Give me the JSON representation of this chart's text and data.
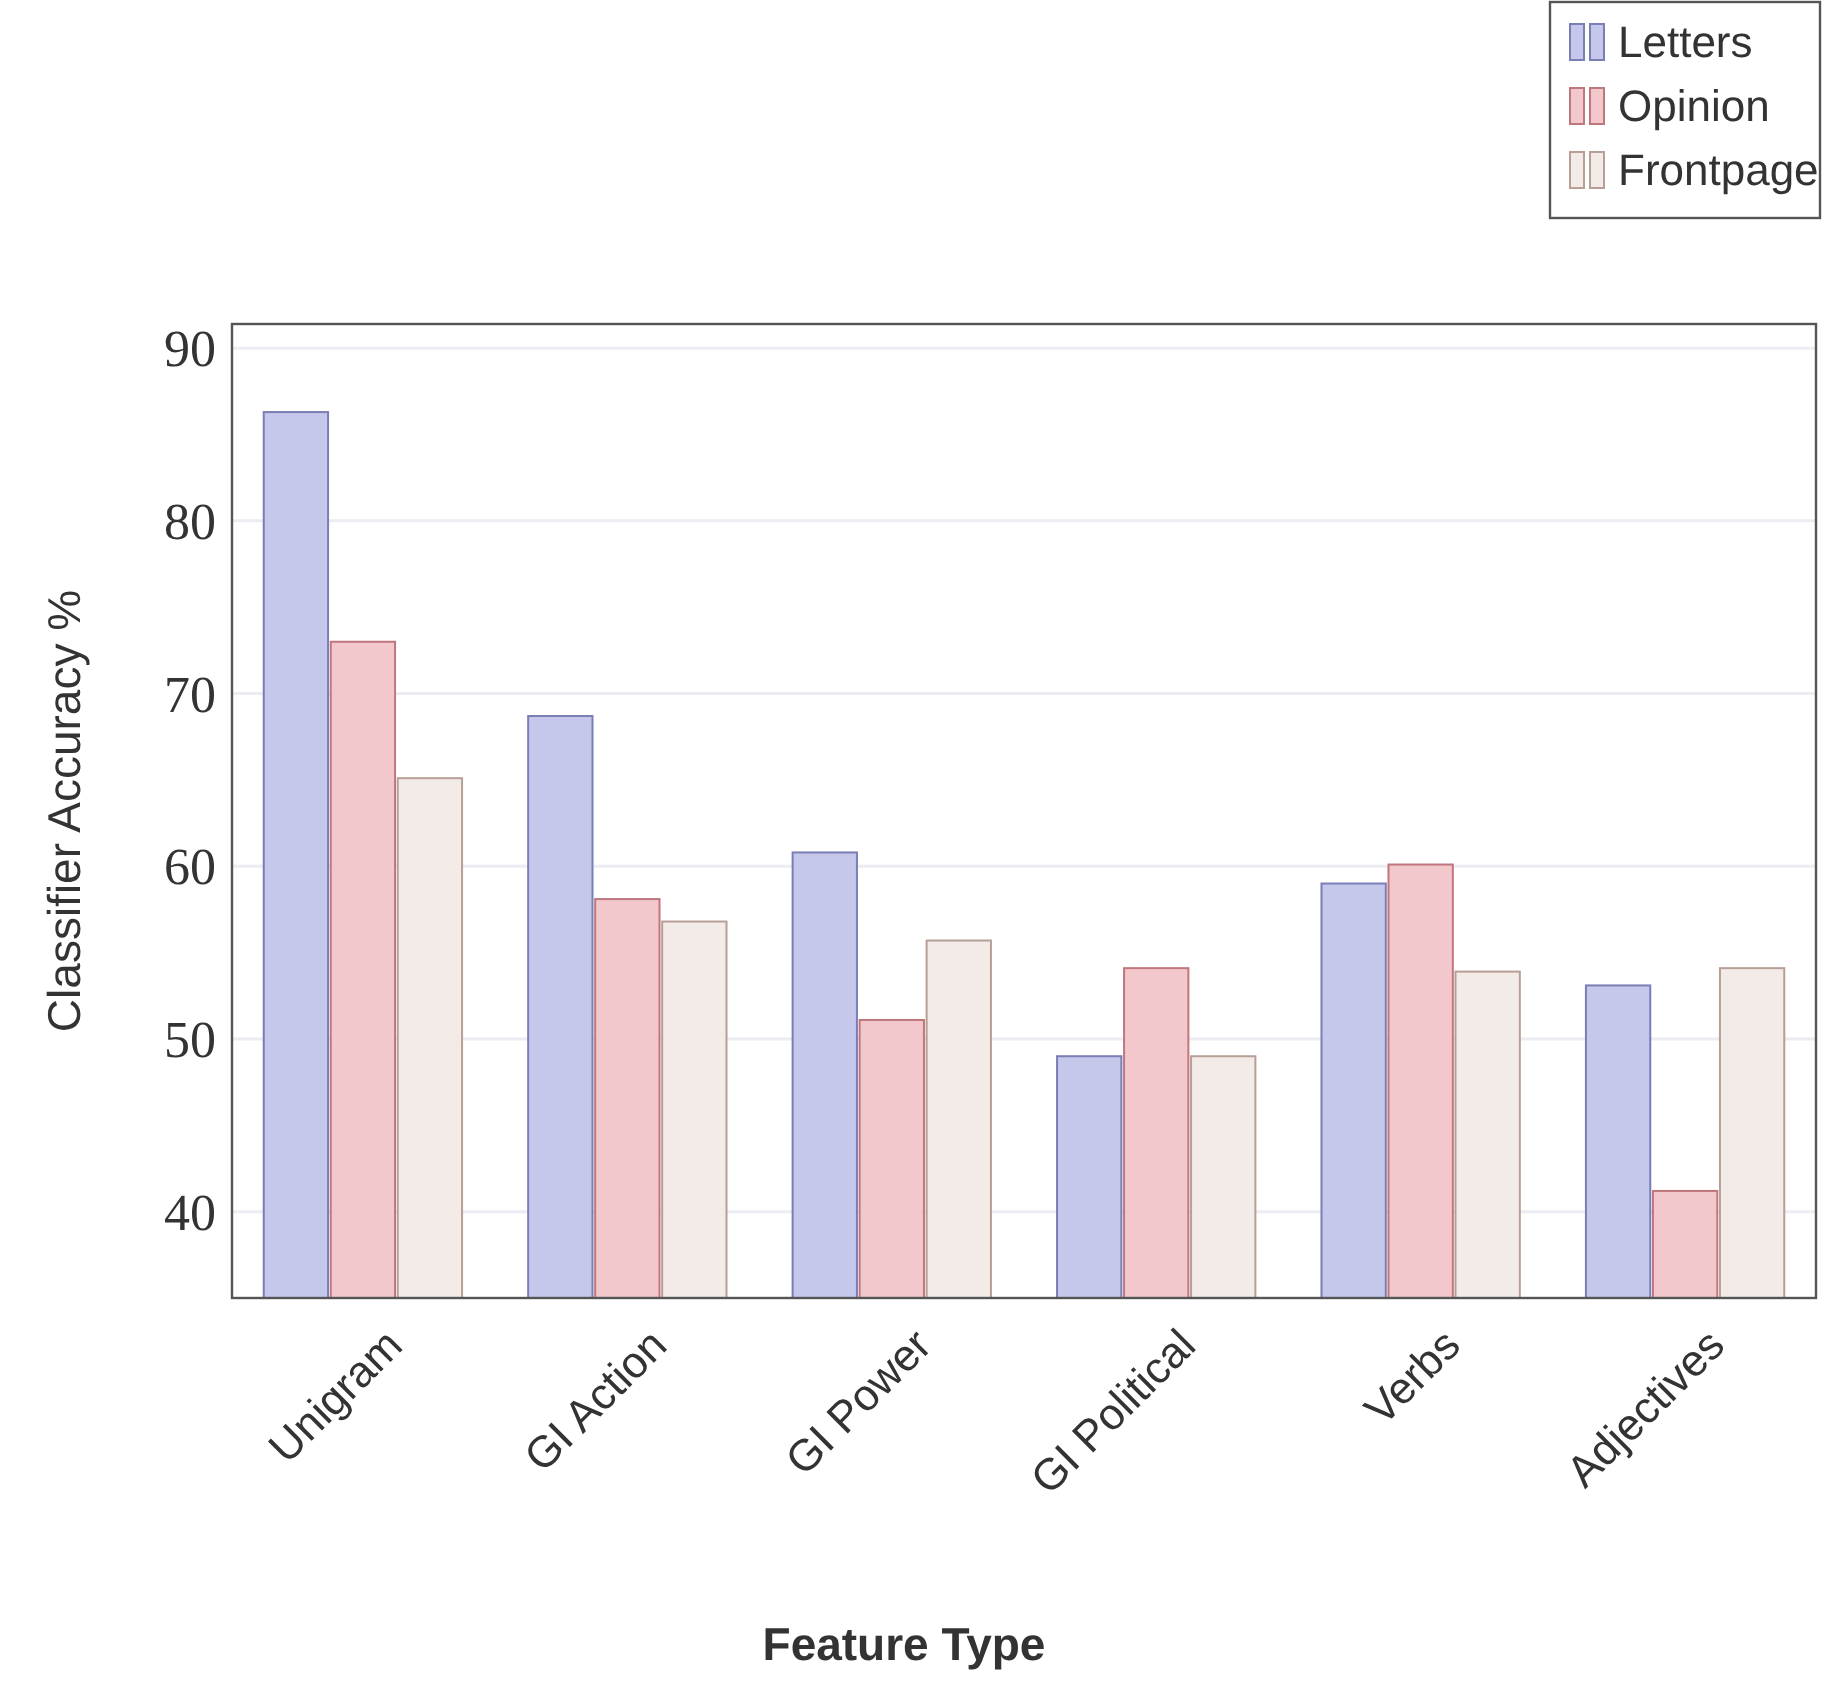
{
  "chart_data": {
    "type": "bar",
    "xlabel": "Feature Type",
    "ylabel": "Classifier Accuracy %",
    "categories": [
      "Unigram",
      "GI Action",
      "GI Power",
      "GI Political",
      "Verbs",
      "Adjectives"
    ],
    "series": [
      {
        "name": "Letters",
        "color": "#c5c8eb",
        "values": [
          86.3,
          68.7,
          60.8,
          49.0,
          59.0,
          53.1
        ]
      },
      {
        "name": "Opinion",
        "color": "#f2c8cc",
        "values": [
          73.0,
          58.1,
          51.1,
          54.1,
          60.1,
          41.2
        ]
      },
      {
        "name": "Frontpage",
        "color": "#f3ebe8",
        "values": [
          65.1,
          56.8,
          55.7,
          49.0,
          53.9,
          54.1
        ]
      }
    ],
    "ylim": [
      35,
      91.4
    ],
    "yticks": [
      40,
      50,
      60,
      70,
      80,
      90
    ],
    "grid": "y",
    "legend": "top right"
  }
}
